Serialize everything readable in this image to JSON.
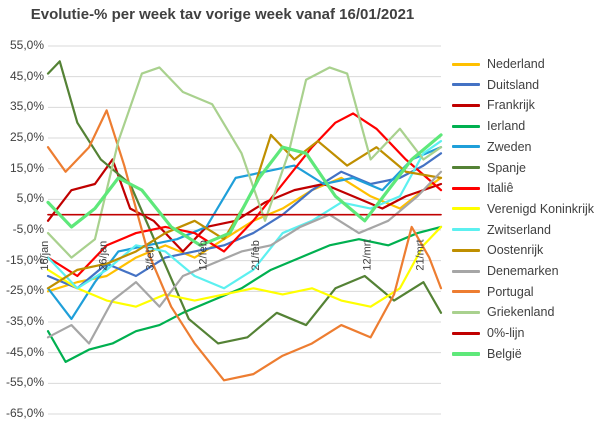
{
  "chart_data": {
    "type": "line",
    "title": "Evolutie-% per week tav vorige week vanaf 16/01/2021",
    "xlabel": "",
    "ylabel": "",
    "ylim": [
      -65,
      55
    ],
    "yticks": [
      "55,0%",
      "45,0%",
      "35,0%",
      "25,0%",
      "15,0%",
      "5,0%",
      "-5,0%",
      "-15,0%",
      "-25,0%",
      "-35,0%",
      "-45,0%",
      "-55,0%",
      "-65,0%"
    ],
    "xrange": [
      "2021-01-16",
      "2021-03-24"
    ],
    "xticks": [
      {
        "date": "2021-01-16",
        "label": "16/jan"
      },
      {
        "date": "2021-01-26",
        "label": "26/jan"
      },
      {
        "date": "2021-02-03",
        "label": "3/feb"
      },
      {
        "date": "2021-02-12",
        "label": "12/feb"
      },
      {
        "date": "2021-02-21",
        "label": "21/feb"
      },
      {
        "date": "2021-03-12",
        "label": "12/mrt"
      },
      {
        "date": "2021-03-21",
        "label": "21/mrt"
      }
    ],
    "grid": true,
    "legend_position": "right",
    "series": [
      {
        "name": "Nederland",
        "color": "#FFC000",
        "points": [
          [
            "2021-01-16",
            -25
          ],
          [
            "2021-01-21",
            -22
          ],
          [
            "2021-01-26",
            -20
          ],
          [
            "2021-01-31",
            -14
          ],
          [
            "2021-02-05",
            -10
          ],
          [
            "2021-02-10",
            -14
          ],
          [
            "2021-02-15",
            -8
          ],
          [
            "2021-02-20",
            -2
          ],
          [
            "2021-02-25",
            2
          ],
          [
            "2021-03-02",
            8
          ],
          [
            "2021-03-07",
            12
          ],
          [
            "2021-03-12",
            6
          ],
          [
            "2021-03-17",
            2
          ],
          [
            "2021-03-21",
            8
          ],
          [
            "2021-03-24",
            12
          ]
        ]
      },
      {
        "name": "Duitsland",
        "color": "#4472C4",
        "points": [
          [
            "2021-01-16",
            -20
          ],
          [
            "2021-01-21",
            -24
          ],
          [
            "2021-01-26",
            -16
          ],
          [
            "2021-01-31",
            -20
          ],
          [
            "2021-02-05",
            -14
          ],
          [
            "2021-02-10",
            -12
          ],
          [
            "2021-02-15",
            -10
          ],
          [
            "2021-02-20",
            -6
          ],
          [
            "2021-02-25",
            0
          ],
          [
            "2021-03-02",
            8
          ],
          [
            "2021-03-07",
            14
          ],
          [
            "2021-03-12",
            10
          ],
          [
            "2021-03-17",
            12
          ],
          [
            "2021-03-21",
            16
          ],
          [
            "2021-03-24",
            20
          ]
        ]
      },
      {
        "name": "Frankrijk",
        "color": "#C00000",
        "points": [
          [
            "2021-01-16",
            -2
          ],
          [
            "2021-01-20",
            8
          ],
          [
            "2021-01-24",
            10
          ],
          [
            "2021-01-27",
            18
          ],
          [
            "2021-01-30",
            2
          ],
          [
            "2021-02-03",
            -2
          ],
          [
            "2021-02-08",
            -12
          ],
          [
            "2021-02-12",
            -4
          ],
          [
            "2021-02-17",
            -2
          ],
          [
            "2021-02-22",
            4
          ],
          [
            "2021-02-27",
            8
          ],
          [
            "2021-03-04",
            10
          ],
          [
            "2021-03-09",
            6
          ],
          [
            "2021-03-14",
            2
          ],
          [
            "2021-03-18",
            6
          ],
          [
            "2021-03-24",
            10
          ]
        ]
      },
      {
        "name": "Ierland",
        "color": "#00B050",
        "points": [
          [
            "2021-01-16",
            -38
          ],
          [
            "2021-01-19",
            -48
          ],
          [
            "2021-01-23",
            -44
          ],
          [
            "2021-01-27",
            -42
          ],
          [
            "2021-01-31",
            -38
          ],
          [
            "2021-02-04",
            -36
          ],
          [
            "2021-02-08",
            -32
          ],
          [
            "2021-02-13",
            -28
          ],
          [
            "2021-02-18",
            -24
          ],
          [
            "2021-02-23",
            -18
          ],
          [
            "2021-02-28",
            -14
          ],
          [
            "2021-03-05",
            -10
          ],
          [
            "2021-03-10",
            -8
          ],
          [
            "2021-03-15",
            -10
          ],
          [
            "2021-03-20",
            -6
          ],
          [
            "2021-03-24",
            -4
          ]
        ]
      },
      {
        "name": "Zweden",
        "color": "#1F9FD9",
        "points": [
          [
            "2021-01-16",
            -24
          ],
          [
            "2021-01-20",
            -34
          ],
          [
            "2021-01-24",
            -22
          ],
          [
            "2021-01-28",
            -12
          ],
          [
            "2021-02-02",
            -10
          ],
          [
            "2021-02-07",
            -8
          ],
          [
            "2021-02-12",
            -4
          ],
          [
            "2021-02-17",
            12
          ],
          [
            "2021-02-22",
            14
          ],
          [
            "2021-02-27",
            16
          ],
          [
            "2021-03-04",
            10
          ],
          [
            "2021-03-09",
            12
          ],
          [
            "2021-03-14",
            8
          ],
          [
            "2021-03-19",
            18
          ],
          [
            "2021-03-24",
            22
          ]
        ]
      },
      {
        "name": "Spanje",
        "color": "#548235",
        "points": [
          [
            "2021-01-16",
            46
          ],
          [
            "2021-01-18",
            50
          ],
          [
            "2021-01-21",
            30
          ],
          [
            "2021-01-25",
            18
          ],
          [
            "2021-01-30",
            10
          ],
          [
            "2021-02-04",
            -12
          ],
          [
            "2021-02-09",
            -34
          ],
          [
            "2021-02-14",
            -42
          ],
          [
            "2021-02-19",
            -40
          ],
          [
            "2021-02-24",
            -32
          ],
          [
            "2021-03-01",
            -36
          ],
          [
            "2021-03-06",
            -24
          ],
          [
            "2021-03-11",
            -20
          ],
          [
            "2021-03-16",
            -28
          ],
          [
            "2021-03-21",
            -22
          ],
          [
            "2021-03-24",
            -32
          ]
        ]
      },
      {
        "name": "Italiê",
        "color": "#FF0000",
        "points": [
          [
            "2021-01-16",
            -14
          ],
          [
            "2021-01-21",
            -20
          ],
          [
            "2021-01-26",
            -10
          ],
          [
            "2021-01-31",
            -6
          ],
          [
            "2021-02-05",
            -4
          ],
          [
            "2021-02-10",
            -6
          ],
          [
            "2021-02-15",
            -12
          ],
          [
            "2021-02-20",
            -2
          ],
          [
            "2021-02-25",
            10
          ],
          [
            "2021-03-02",
            22
          ],
          [
            "2021-03-06",
            30
          ],
          [
            "2021-03-09",
            33
          ],
          [
            "2021-03-13",
            28
          ],
          [
            "2021-03-18",
            18
          ],
          [
            "2021-03-24",
            8
          ]
        ]
      },
      {
        "name": "Verenigd Koninkrijk",
        "color": "#FFFF00",
        "points": [
          [
            "2021-01-16",
            -18
          ],
          [
            "2021-01-21",
            -24
          ],
          [
            "2021-01-26",
            -28
          ],
          [
            "2021-01-31",
            -30
          ],
          [
            "2021-02-05",
            -26
          ],
          [
            "2021-02-10",
            -28
          ],
          [
            "2021-02-15",
            -26
          ],
          [
            "2021-02-20",
            -24
          ],
          [
            "2021-02-25",
            -26
          ],
          [
            "2021-03-02",
            -24
          ],
          [
            "2021-03-07",
            -28
          ],
          [
            "2021-03-12",
            -30
          ],
          [
            "2021-03-17",
            -24
          ],
          [
            "2021-03-21",
            -10
          ],
          [
            "2021-03-24",
            -4
          ]
        ]
      },
      {
        "name": "Zwitserland",
        "color": "#5CF0F0",
        "points": [
          [
            "2021-01-16",
            -14
          ],
          [
            "2021-01-21",
            -24
          ],
          [
            "2021-01-26",
            -18
          ],
          [
            "2021-01-31",
            -10
          ],
          [
            "2021-02-05",
            -12
          ],
          [
            "2021-02-10",
            -20
          ],
          [
            "2021-02-15",
            -24
          ],
          [
            "2021-02-20",
            -18
          ],
          [
            "2021-02-25",
            -6
          ],
          [
            "2021-03-02",
            -2
          ],
          [
            "2021-03-07",
            4
          ],
          [
            "2021-03-12",
            2
          ],
          [
            "2021-03-17",
            6
          ],
          [
            "2021-03-21",
            20
          ],
          [
            "2021-03-24",
            24
          ]
        ]
      },
      {
        "name": "Oostenrijk",
        "color": "#BF8F00",
        "points": [
          [
            "2021-01-16",
            -24
          ],
          [
            "2021-01-21",
            -18
          ],
          [
            "2021-01-26",
            -16
          ],
          [
            "2021-01-31",
            -12
          ],
          [
            "2021-02-05",
            -6
          ],
          [
            "2021-02-10",
            -2
          ],
          [
            "2021-02-15",
            -8
          ],
          [
            "2021-02-20",
            8
          ],
          [
            "2021-02-23",
            26
          ],
          [
            "2021-02-27",
            18
          ],
          [
            "2021-03-03",
            24
          ],
          [
            "2021-03-08",
            16
          ],
          [
            "2021-03-13",
            22
          ],
          [
            "2021-03-18",
            14
          ],
          [
            "2021-03-24",
            12
          ]
        ]
      },
      {
        "name": "Denemarken",
        "color": "#A6A6A6",
        "points": [
          [
            "2021-01-16",
            -40
          ],
          [
            "2021-01-20",
            -36
          ],
          [
            "2021-01-23",
            -42
          ],
          [
            "2021-01-27",
            -28
          ],
          [
            "2021-01-31",
            -22
          ],
          [
            "2021-02-04",
            -30
          ],
          [
            "2021-02-08",
            -20
          ],
          [
            "2021-02-13",
            -16
          ],
          [
            "2021-02-18",
            -12
          ],
          [
            "2021-02-23",
            -10
          ],
          [
            "2021-02-28",
            -4
          ],
          [
            "2021-03-05",
            0
          ],
          [
            "2021-03-10",
            -6
          ],
          [
            "2021-03-15",
            -2
          ],
          [
            "2021-03-20",
            6
          ],
          [
            "2021-03-24",
            14
          ]
        ]
      },
      {
        "name": "Portugal",
        "color": "#ED7D31",
        "points": [
          [
            "2021-01-16",
            22
          ],
          [
            "2021-01-19",
            14
          ],
          [
            "2021-01-23",
            22
          ],
          [
            "2021-01-26",
            34
          ],
          [
            "2021-01-29",
            16
          ],
          [
            "2021-02-02",
            -12
          ],
          [
            "2021-02-06",
            -30
          ],
          [
            "2021-02-10",
            -42
          ],
          [
            "2021-02-15",
            -54
          ],
          [
            "2021-02-20",
            -52
          ],
          [
            "2021-02-25",
            -46
          ],
          [
            "2021-03-02",
            -42
          ],
          [
            "2021-03-07",
            -36
          ],
          [
            "2021-03-12",
            -40
          ],
          [
            "2021-03-16",
            -26
          ],
          [
            "2021-03-19",
            -4
          ],
          [
            "2021-03-22",
            -14
          ],
          [
            "2021-03-24",
            -24
          ]
        ]
      },
      {
        "name": "Griekenland",
        "color": "#A9D18E",
        "points": [
          [
            "2021-01-16",
            -6
          ],
          [
            "2021-01-20",
            -14
          ],
          [
            "2021-01-24",
            -8
          ],
          [
            "2021-01-28",
            24
          ],
          [
            "2021-02-01",
            46
          ],
          [
            "2021-02-04",
            48
          ],
          [
            "2021-02-08",
            40
          ],
          [
            "2021-02-13",
            36
          ],
          [
            "2021-02-18",
            20
          ],
          [
            "2021-02-22",
            -2
          ],
          [
            "2021-02-26",
            20
          ],
          [
            "2021-03-01",
            44
          ],
          [
            "2021-03-05",
            48
          ],
          [
            "2021-03-08",
            46
          ],
          [
            "2021-03-12",
            18
          ],
          [
            "2021-03-17",
            28
          ],
          [
            "2021-03-21",
            18
          ],
          [
            "2021-03-24",
            22
          ]
        ]
      },
      {
        "name": "0%-lijn",
        "color": "#C00000",
        "points": [
          [
            "2021-01-16",
            0
          ],
          [
            "2021-03-24",
            0
          ]
        ]
      },
      {
        "name": "België",
        "color": "#5EE87A",
        "points": [
          [
            "2021-01-16",
            4
          ],
          [
            "2021-01-20",
            -4
          ],
          [
            "2021-01-24",
            2
          ],
          [
            "2021-01-28",
            12
          ],
          [
            "2021-02-01",
            8
          ],
          [
            "2021-02-06",
            -4
          ],
          [
            "2021-02-11",
            -10
          ],
          [
            "2021-02-16",
            -6
          ],
          [
            "2021-02-21",
            12
          ],
          [
            "2021-02-25",
            22
          ],
          [
            "2021-03-01",
            20
          ],
          [
            "2021-03-06",
            6
          ],
          [
            "2021-03-11",
            -2
          ],
          [
            "2021-03-15",
            8
          ],
          [
            "2021-03-19",
            18
          ],
          [
            "2021-03-24",
            26
          ]
        ]
      }
    ]
  }
}
